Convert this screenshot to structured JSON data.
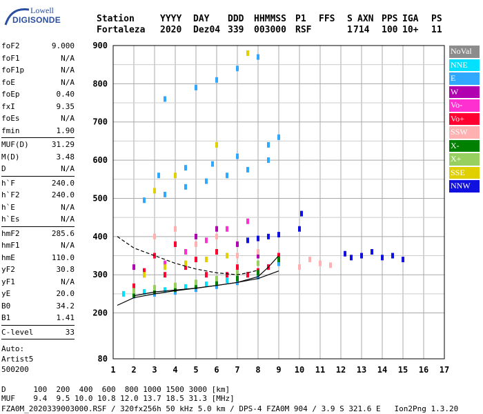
{
  "logo": {
    "top_text": "Lowell",
    "main_text": "DIGISONDE"
  },
  "header": {
    "line1": [
      "Station",
      "YYYY",
      "DAY",
      "DDD",
      "HHMMSS",
      "P1",
      "FFS",
      "S",
      "AXN",
      "PPS",
      "IGA",
      "PS"
    ],
    "line2": [
      "Fortaleza",
      "2020",
      "Dez04",
      "339",
      "003000",
      "RSF",
      "1",
      "714",
      "100",
      "10+",
      "11"
    ]
  },
  "params_group1": [
    {
      "k": "foF2",
      "v": "9.000"
    },
    {
      "k": "foF1",
      "v": "N/A"
    },
    {
      "k": "foF1p",
      "v": "N/A"
    },
    {
      "k": "foE",
      "v": "N/A"
    },
    {
      "k": "foEp",
      "v": "0.40"
    },
    {
      "k": "fxI",
      "v": "9.35"
    },
    {
      "k": "foEs",
      "v": "N/A"
    },
    {
      "k": "fmin",
      "v": "1.90"
    }
  ],
  "params_group2": [
    {
      "k": "MUF(D)",
      "v": "31.29"
    },
    {
      "k": "M(D)",
      "v": "3.48"
    },
    {
      "k": "D",
      "v": "N/A"
    }
  ],
  "params_group3": [
    {
      "k": "h`F",
      "v": "240.0"
    },
    {
      "k": "h`F2",
      "v": "240.0"
    },
    {
      "k": "h`E",
      "v": "N/A"
    },
    {
      "k": "h`Es",
      "v": "N/A"
    }
  ],
  "params_group4": [
    {
      "k": "hmF2",
      "v": "285.6"
    },
    {
      "k": "hmF1",
      "v": "N/A"
    },
    {
      "k": "hmE",
      "v": "110.0"
    },
    {
      "k": "yF2",
      "v": "30.8"
    },
    {
      "k": "yF1",
      "v": "N/A"
    },
    {
      "k": "yE",
      "v": "20.0"
    },
    {
      "k": "B0",
      "v": "34.2"
    },
    {
      "k": "B1",
      "v": "1.41"
    }
  ],
  "params_group5": [
    {
      "k": "C-level",
      "v": "33"
    }
  ],
  "auto": {
    "l1": "Auto:",
    "l2": "Artist5",
    "l3": "500200"
  },
  "legend": [
    {
      "label": "NoVal",
      "color": "#8c8c8c"
    },
    {
      "label": "NNE",
      "color": "#00e0ff"
    },
    {
      "label": "E",
      "color": "#30a8ff"
    },
    {
      "label": "W",
      "color": "#b000b0"
    },
    {
      "label": "Vo-",
      "color": "#ff30d0"
    },
    {
      "label": "Vo+",
      "color": "#ff0030"
    },
    {
      "label": "SSW",
      "color": "#ffb0b0"
    },
    {
      "label": "X-",
      "color": "#008000"
    },
    {
      "label": "X+",
      "color": "#98d060"
    },
    {
      "label": "SSE",
      "color": "#e0d000"
    },
    {
      "label": "NNW",
      "color": "#1010e0"
    }
  ],
  "footer": {
    "d_line": "D      100  200  400  600  800 1000 1500 3000 [km]",
    "muf_line": "MUF    9.4  9.5 10.0 10.8 12.0 13.7 18.5 31.3 [MHz]",
    "file_line": "FZA0M_2020339003000.RSF / 320fx256h 50 kHz 5.0 km / DPS-4 FZA0M 904 / 3.9 S 321.6 E   Ion2Png 1.3.20"
  },
  "chart_data": {
    "type": "scatter",
    "xlim": [
      1,
      17
    ],
    "ylim": [
      80,
      900
    ],
    "x_ticks": [
      1,
      2,
      3,
      4,
      5,
      6,
      7,
      8,
      9,
      10,
      11,
      12,
      13,
      14,
      15,
      16,
      17
    ],
    "y_ticks": [
      80,
      200,
      300,
      400,
      500,
      600,
      700,
      800,
      900
    ],
    "grid": true,
    "series": [
      {
        "name": "NNE",
        "color": "#00e0ff",
        "x": [
          1.5,
          2.5,
          3.5,
          4.5,
          5.5,
          6.5,
          7.5,
          8.5
        ],
        "y": [
          250,
          255,
          260,
          268,
          275,
          285,
          300,
          320
        ]
      },
      {
        "name": "E",
        "color": "#30a8ff",
        "x": [
          2.0,
          3.0,
          4.0,
          5.0,
          6.0,
          7.0,
          8.0,
          9.0,
          2.5,
          3.5,
          4.5,
          5.5,
          6.5,
          7.5,
          8.5,
          3.2,
          4.5,
          5.8,
          7.0,
          8.5,
          9.0,
          3.5,
          5.0,
          6.0,
          7.0,
          8.0
        ],
        "y": [
          245,
          250,
          255,
          262,
          270,
          280,
          295,
          330,
          495,
          510,
          530,
          545,
          560,
          575,
          600,
          560,
          580,
          590,
          610,
          640,
          660,
          760,
          790,
          810,
          840,
          870
        ]
      },
      {
        "name": "W",
        "color": "#b000b0",
        "x": [
          2.0,
          3.0,
          4.0,
          5.0,
          6.0,
          7.0,
          8.0
        ],
        "y": [
          320,
          350,
          380,
          400,
          420,
          380,
          350
        ]
      },
      {
        "name": "Vo-",
        "color": "#ff30d0",
        "x": [
          2.5,
          3.5,
          4.5,
          5.5,
          6.5,
          7.5
        ],
        "y": [
          300,
          330,
          360,
          390,
          420,
          440
        ]
      },
      {
        "name": "Vo+",
        "color": "#ff0030",
        "x": [
          2.0,
          2.5,
          3.0,
          3.5,
          4.0,
          4.5,
          5.0,
          5.5,
          6.0,
          6.5,
          7.0,
          7.5,
          8.0,
          8.5,
          9.0
        ],
        "y": [
          270,
          310,
          350,
          300,
          380,
          320,
          340,
          300,
          360,
          300,
          320,
          300,
          310,
          320,
          350
        ]
      },
      {
        "name": "SSW",
        "color": "#ffb0b0",
        "x": [
          3.0,
          4.0,
          5.0,
          6.0,
          7.0,
          8.0,
          10.0,
          10.5,
          11.0,
          11.5
        ],
        "y": [
          400,
          420,
          380,
          400,
          350,
          360,
          320,
          340,
          330,
          325
        ]
      },
      {
        "name": "X-",
        "color": "#008000",
        "x": [
          2.0,
          3.0,
          4.0,
          5.0,
          6.0,
          7.0,
          8.0,
          9.0
        ],
        "y": [
          248,
          256,
          262,
          270,
          278,
          290,
          305,
          340
        ]
      },
      {
        "name": "X+",
        "color": "#98d060",
        "x": [
          2.0,
          3.0,
          4.0,
          5.0,
          6.0,
          7.0,
          8.0
        ],
        "y": [
          258,
          266,
          272,
          280,
          290,
          305,
          330
        ]
      },
      {
        "name": "SSE",
        "color": "#e0d000",
        "x": [
          2.5,
          3.5,
          4.5,
          5.5,
          6.5,
          3.0,
          4.0,
          6.0,
          7.5
        ],
        "y": [
          300,
          320,
          330,
          340,
          350,
          520,
          560,
          640,
          880
        ]
      },
      {
        "name": "NNW",
        "color": "#1010e0",
        "x": [
          7.5,
          8.0,
          8.5,
          9.0,
          10.0,
          10.1,
          12.2,
          12.5,
          13.0,
          13.5,
          14.0,
          14.5,
          15.0
        ],
        "y": [
          390,
          395,
          400,
          405,
          420,
          460,
          355,
          345,
          350,
          360,
          345,
          350,
          340
        ]
      }
    ],
    "curves": [
      {
        "name": "profile-upper",
        "x": [
          1.2,
          2.0,
          3.0,
          4.0,
          5.0,
          6.0,
          7.0,
          7.5,
          8.0
        ],
        "y": [
          400,
          370,
          350,
          330,
          315,
          305,
          300,
          305,
          312
        ]
      },
      {
        "name": "profile-lower",
        "x": [
          1.2,
          2.0,
          3.0,
          4.0,
          5.0,
          6.0,
          7.0,
          8.0,
          8.5,
          9.0
        ],
        "y": [
          220,
          240,
          250,
          258,
          265,
          272,
          280,
          290,
          300,
          310
        ]
      },
      {
        "name": "trace",
        "x": [
          2.0,
          3.0,
          4.0,
          5.0,
          6.0,
          7.0,
          8.0,
          8.5,
          9.0
        ],
        "y": [
          245,
          255,
          260,
          265,
          272,
          280,
          295,
          320,
          350
        ]
      }
    ]
  }
}
